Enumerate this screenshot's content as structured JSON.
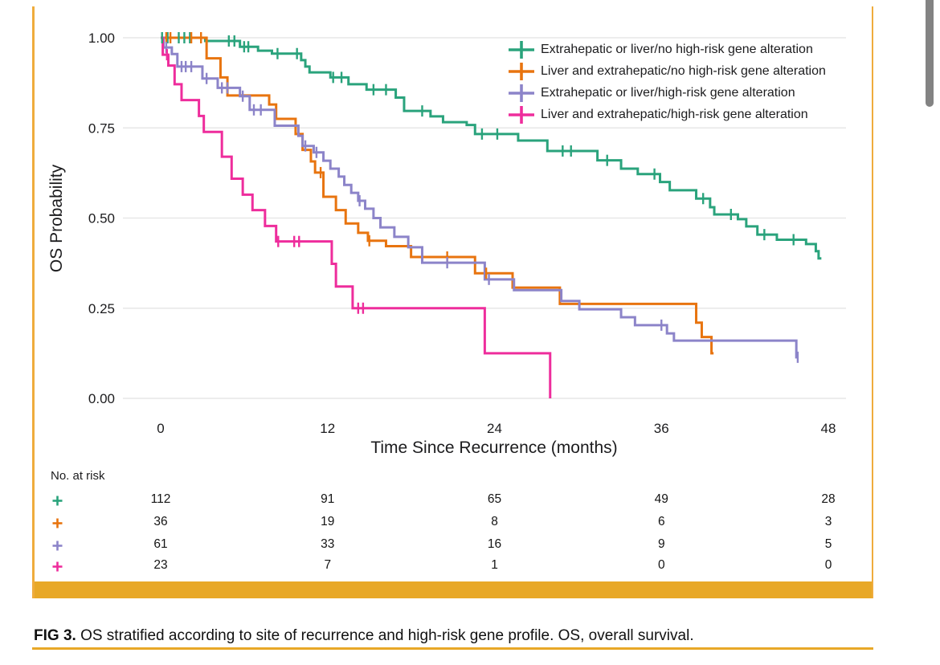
{
  "figure": {
    "caption_label": "FIG 3.",
    "caption_text": " OS stratified according to site of recurrence and high-risk gene profile. OS, overall survival.",
    "accent_color": "#E8A827"
  },
  "chart_data": {
    "type": "line",
    "subtype": "kaplan_meier_step",
    "title": "",
    "xlabel": "Time Since Recurrence (months)",
    "ylabel": "OS Probability",
    "xlim": [
      0,
      48
    ],
    "xticks": [
      0,
      12,
      24,
      36,
      48
    ],
    "ylim": [
      0,
      1
    ],
    "ytick_labels": [
      "1.00",
      "0.75",
      "0.50",
      "0.25",
      "0.00"
    ],
    "ytick_values": [
      1.0,
      0.75,
      0.5,
      0.25,
      0.0
    ],
    "grid": "horizontal",
    "legend_position": "top-right",
    "series": [
      {
        "name": "Extrahepatic or liver/no high-risk gene alteration",
        "color": "#2AA37C",
        "steps": [
          [
            0,
            1.0
          ],
          [
            3.2,
            0.991
          ],
          [
            5.7,
            0.975
          ],
          [
            7.0,
            0.964
          ],
          [
            8.0,
            0.956
          ],
          [
            10.1,
            0.938
          ],
          [
            10.4,
            0.92
          ],
          [
            10.7,
            0.904
          ],
          [
            12.2,
            0.89
          ],
          [
            13.5,
            0.871
          ],
          [
            14.8,
            0.856
          ],
          [
            16.9,
            0.834
          ],
          [
            17.5,
            0.797
          ],
          [
            19.4,
            0.782
          ],
          [
            20.3,
            0.766
          ],
          [
            22.0,
            0.758
          ],
          [
            22.6,
            0.733
          ],
          [
            25.7,
            0.715
          ],
          [
            27.8,
            0.686
          ],
          [
            31.4,
            0.66
          ],
          [
            33.1,
            0.637
          ],
          [
            34.3,
            0.622
          ],
          [
            35.9,
            0.6
          ],
          [
            36.6,
            0.577
          ],
          [
            38.5,
            0.554
          ],
          [
            39.5,
            0.53
          ],
          [
            39.8,
            0.51
          ],
          [
            41.5,
            0.497
          ],
          [
            42.1,
            0.477
          ],
          [
            42.9,
            0.454
          ],
          [
            44.3,
            0.44
          ],
          [
            46.4,
            0.428
          ],
          [
            47.1,
            0.408
          ],
          [
            47.3,
            0.388
          ]
        ],
        "censors": [
          [
            0.1,
            1.0
          ],
          [
            0.5,
            1.0
          ],
          [
            1.3,
            1.0
          ],
          [
            1.7,
            1.0
          ],
          [
            2.1,
            1.0
          ],
          [
            4.9,
            0.991
          ],
          [
            5.3,
            0.991
          ],
          [
            6.0,
            0.975
          ],
          [
            6.3,
            0.975
          ],
          [
            8.4,
            0.956
          ],
          [
            9.8,
            0.956
          ],
          [
            12.4,
            0.89
          ],
          [
            13.0,
            0.89
          ],
          [
            15.3,
            0.856
          ],
          [
            16.2,
            0.856
          ],
          [
            18.8,
            0.797
          ],
          [
            23.1,
            0.733
          ],
          [
            24.2,
            0.733
          ],
          [
            28.9,
            0.686
          ],
          [
            29.5,
            0.686
          ],
          [
            32.1,
            0.66
          ],
          [
            35.5,
            0.622
          ],
          [
            39.0,
            0.554
          ],
          [
            41.0,
            0.51
          ],
          [
            43.4,
            0.454
          ],
          [
            45.5,
            0.44
          ]
        ],
        "end_t": 47.5
      },
      {
        "name": "Liver and extrahepatic/no high-risk gene alteration",
        "color": "#E8740F",
        "steps": [
          [
            0,
            1.0
          ],
          [
            3.3,
            0.943
          ],
          [
            4.3,
            0.89
          ],
          [
            4.8,
            0.84
          ],
          [
            7.8,
            0.815
          ],
          [
            8.3,
            0.775
          ],
          [
            9.7,
            0.733
          ],
          [
            10.2,
            0.689
          ],
          [
            10.8,
            0.657
          ],
          [
            11.1,
            0.626
          ],
          [
            11.7,
            0.559
          ],
          [
            12.6,
            0.522
          ],
          [
            13.3,
            0.485
          ],
          [
            14.2,
            0.459
          ],
          [
            14.9,
            0.437
          ],
          [
            16.2,
            0.422
          ],
          [
            18.0,
            0.392
          ],
          [
            22.6,
            0.347
          ],
          [
            25.3,
            0.307
          ],
          [
            28.7,
            0.262
          ],
          [
            38.5,
            0.21
          ],
          [
            38.9,
            0.17
          ],
          [
            39.6,
            0.125
          ]
        ],
        "censors": [
          [
            0.4,
            1.0
          ],
          [
            0.7,
            1.0
          ],
          [
            2.2,
            1.0
          ],
          [
            2.9,
            1.0
          ],
          [
            11.5,
            0.626
          ],
          [
            15.0,
            0.437
          ],
          [
            20.6,
            0.392
          ],
          [
            23.4,
            0.347
          ]
        ],
        "end_t": 39.75
      },
      {
        "name": "Extrahepatic or liver/high-risk gene alteration",
        "color": "#8C84C9",
        "steps": [
          [
            0,
            1.0
          ],
          [
            0.2,
            0.973
          ],
          [
            0.8,
            0.955
          ],
          [
            1.2,
            0.92
          ],
          [
            3.0,
            0.887
          ],
          [
            4.1,
            0.861
          ],
          [
            5.7,
            0.838
          ],
          [
            6.4,
            0.8
          ],
          [
            8.2,
            0.756
          ],
          [
            9.9,
            0.728
          ],
          [
            10.2,
            0.7
          ],
          [
            11.0,
            0.682
          ],
          [
            11.7,
            0.659
          ],
          [
            12.2,
            0.637
          ],
          [
            12.8,
            0.615
          ],
          [
            13.2,
            0.592
          ],
          [
            13.7,
            0.57
          ],
          [
            14.2,
            0.548
          ],
          [
            14.7,
            0.526
          ],
          [
            15.3,
            0.5
          ],
          [
            15.8,
            0.474
          ],
          [
            16.8,
            0.448
          ],
          [
            17.8,
            0.419
          ],
          [
            18.8,
            0.376
          ],
          [
            23.3,
            0.33
          ],
          [
            25.4,
            0.3
          ],
          [
            28.8,
            0.27
          ],
          [
            30.1,
            0.247
          ],
          [
            33.1,
            0.225
          ],
          [
            34.1,
            0.203
          ],
          [
            36.4,
            0.18
          ],
          [
            36.9,
            0.16
          ],
          [
            45.7,
            0.114
          ]
        ],
        "censors": [
          [
            0.4,
            0.973
          ],
          [
            1.5,
            0.92
          ],
          [
            1.8,
            0.92
          ],
          [
            2.2,
            0.92
          ],
          [
            3.3,
            0.887
          ],
          [
            4.4,
            0.861
          ],
          [
            4.8,
            0.861
          ],
          [
            5.9,
            0.838
          ],
          [
            6.7,
            0.8
          ],
          [
            7.2,
            0.8
          ],
          [
            10.4,
            0.7
          ],
          [
            11.2,
            0.682
          ],
          [
            14.3,
            0.548
          ],
          [
            20.6,
            0.376
          ],
          [
            23.6,
            0.33
          ],
          [
            36.0,
            0.203
          ],
          [
            45.8,
            0.114
          ]
        ],
        "end_t": 45.85
      },
      {
        "name": "Liver and extrahepatic/high-risk gene alteration",
        "color": "#EE2D9C",
        "steps": [
          [
            0,
            1.0
          ],
          [
            0.15,
            0.953
          ],
          [
            0.55,
            0.923
          ],
          [
            1.0,
            0.871
          ],
          [
            1.5,
            0.827
          ],
          [
            2.75,
            0.783
          ],
          [
            3.1,
            0.739
          ],
          [
            4.4,
            0.67
          ],
          [
            5.1,
            0.609
          ],
          [
            5.9,
            0.565
          ],
          [
            6.6,
            0.522
          ],
          [
            7.5,
            0.478
          ],
          [
            8.3,
            0.435
          ],
          [
            12.3,
            0.373
          ],
          [
            12.6,
            0.31
          ],
          [
            13.8,
            0.25
          ],
          [
            23.3,
            0.125
          ],
          [
            28.0,
            0.0
          ]
        ],
        "censors": [
          [
            0.45,
            0.953
          ],
          [
            8.45,
            0.435
          ],
          [
            9.6,
            0.435
          ],
          [
            9.95,
            0.435
          ],
          [
            14.2,
            0.25
          ],
          [
            14.55,
            0.25
          ]
        ],
        "end_t": 28.0
      }
    ],
    "risk_table": {
      "label": "No. at risk",
      "times": [
        0,
        12,
        24,
        36,
        48
      ],
      "rows": [
        {
          "series": "Extrahepatic or liver/no high-risk gene alteration",
          "color": "#2AA37C",
          "counts": [
            112,
            91,
            65,
            49,
            28
          ]
        },
        {
          "series": "Liver and extrahepatic/no high-risk gene alteration",
          "color": "#E8740F",
          "counts": [
            36,
            19,
            8,
            6,
            3
          ]
        },
        {
          "series": "Extrahepatic or liver/high-risk gene alteration",
          "color": "#8C84C9",
          "counts": [
            61,
            33,
            16,
            9,
            5
          ]
        },
        {
          "series": "Liver and extrahepatic/high-risk gene alteration",
          "color": "#EE2D9C",
          "counts": [
            23,
            7,
            1,
            0,
            0
          ]
        }
      ]
    }
  },
  "colors": {
    "grid": "#E7E7E7",
    "text": "#1C1C1E",
    "gold": "#E8A827",
    "scrollbar": "#838383"
  }
}
